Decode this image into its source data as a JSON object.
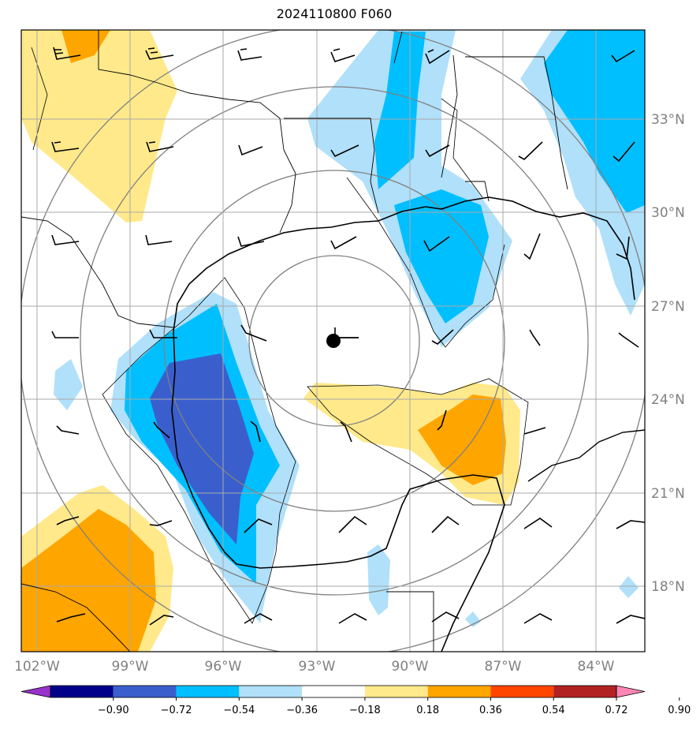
{
  "title": "2024110800 F060",
  "map": {
    "lon_labels": [
      "102°W",
      "99°W",
      "96°W",
      "93°W",
      "90°W",
      "87°W",
      "84°W"
    ],
    "lat_labels": [
      "33°N",
      "30°N",
      "27°N",
      "24°N",
      "21°N",
      "18°N"
    ],
    "center_marker": "storm-center"
  },
  "colorbar": {
    "ticks": [
      "−0.90",
      "−0.72",
      "−0.54",
      "−0.36",
      "−0.18",
      "0.18",
      "0.36",
      "0.54",
      "0.72",
      "0.90"
    ],
    "colors": [
      "#9932cc",
      "#00008b",
      "#3a5fcd",
      "#00bfff",
      "#b0e0fa",
      "#ffffff",
      "#ffe98a",
      "#ffa500",
      "#ff4500",
      "#b22222",
      "#ff85b4"
    ]
  }
}
